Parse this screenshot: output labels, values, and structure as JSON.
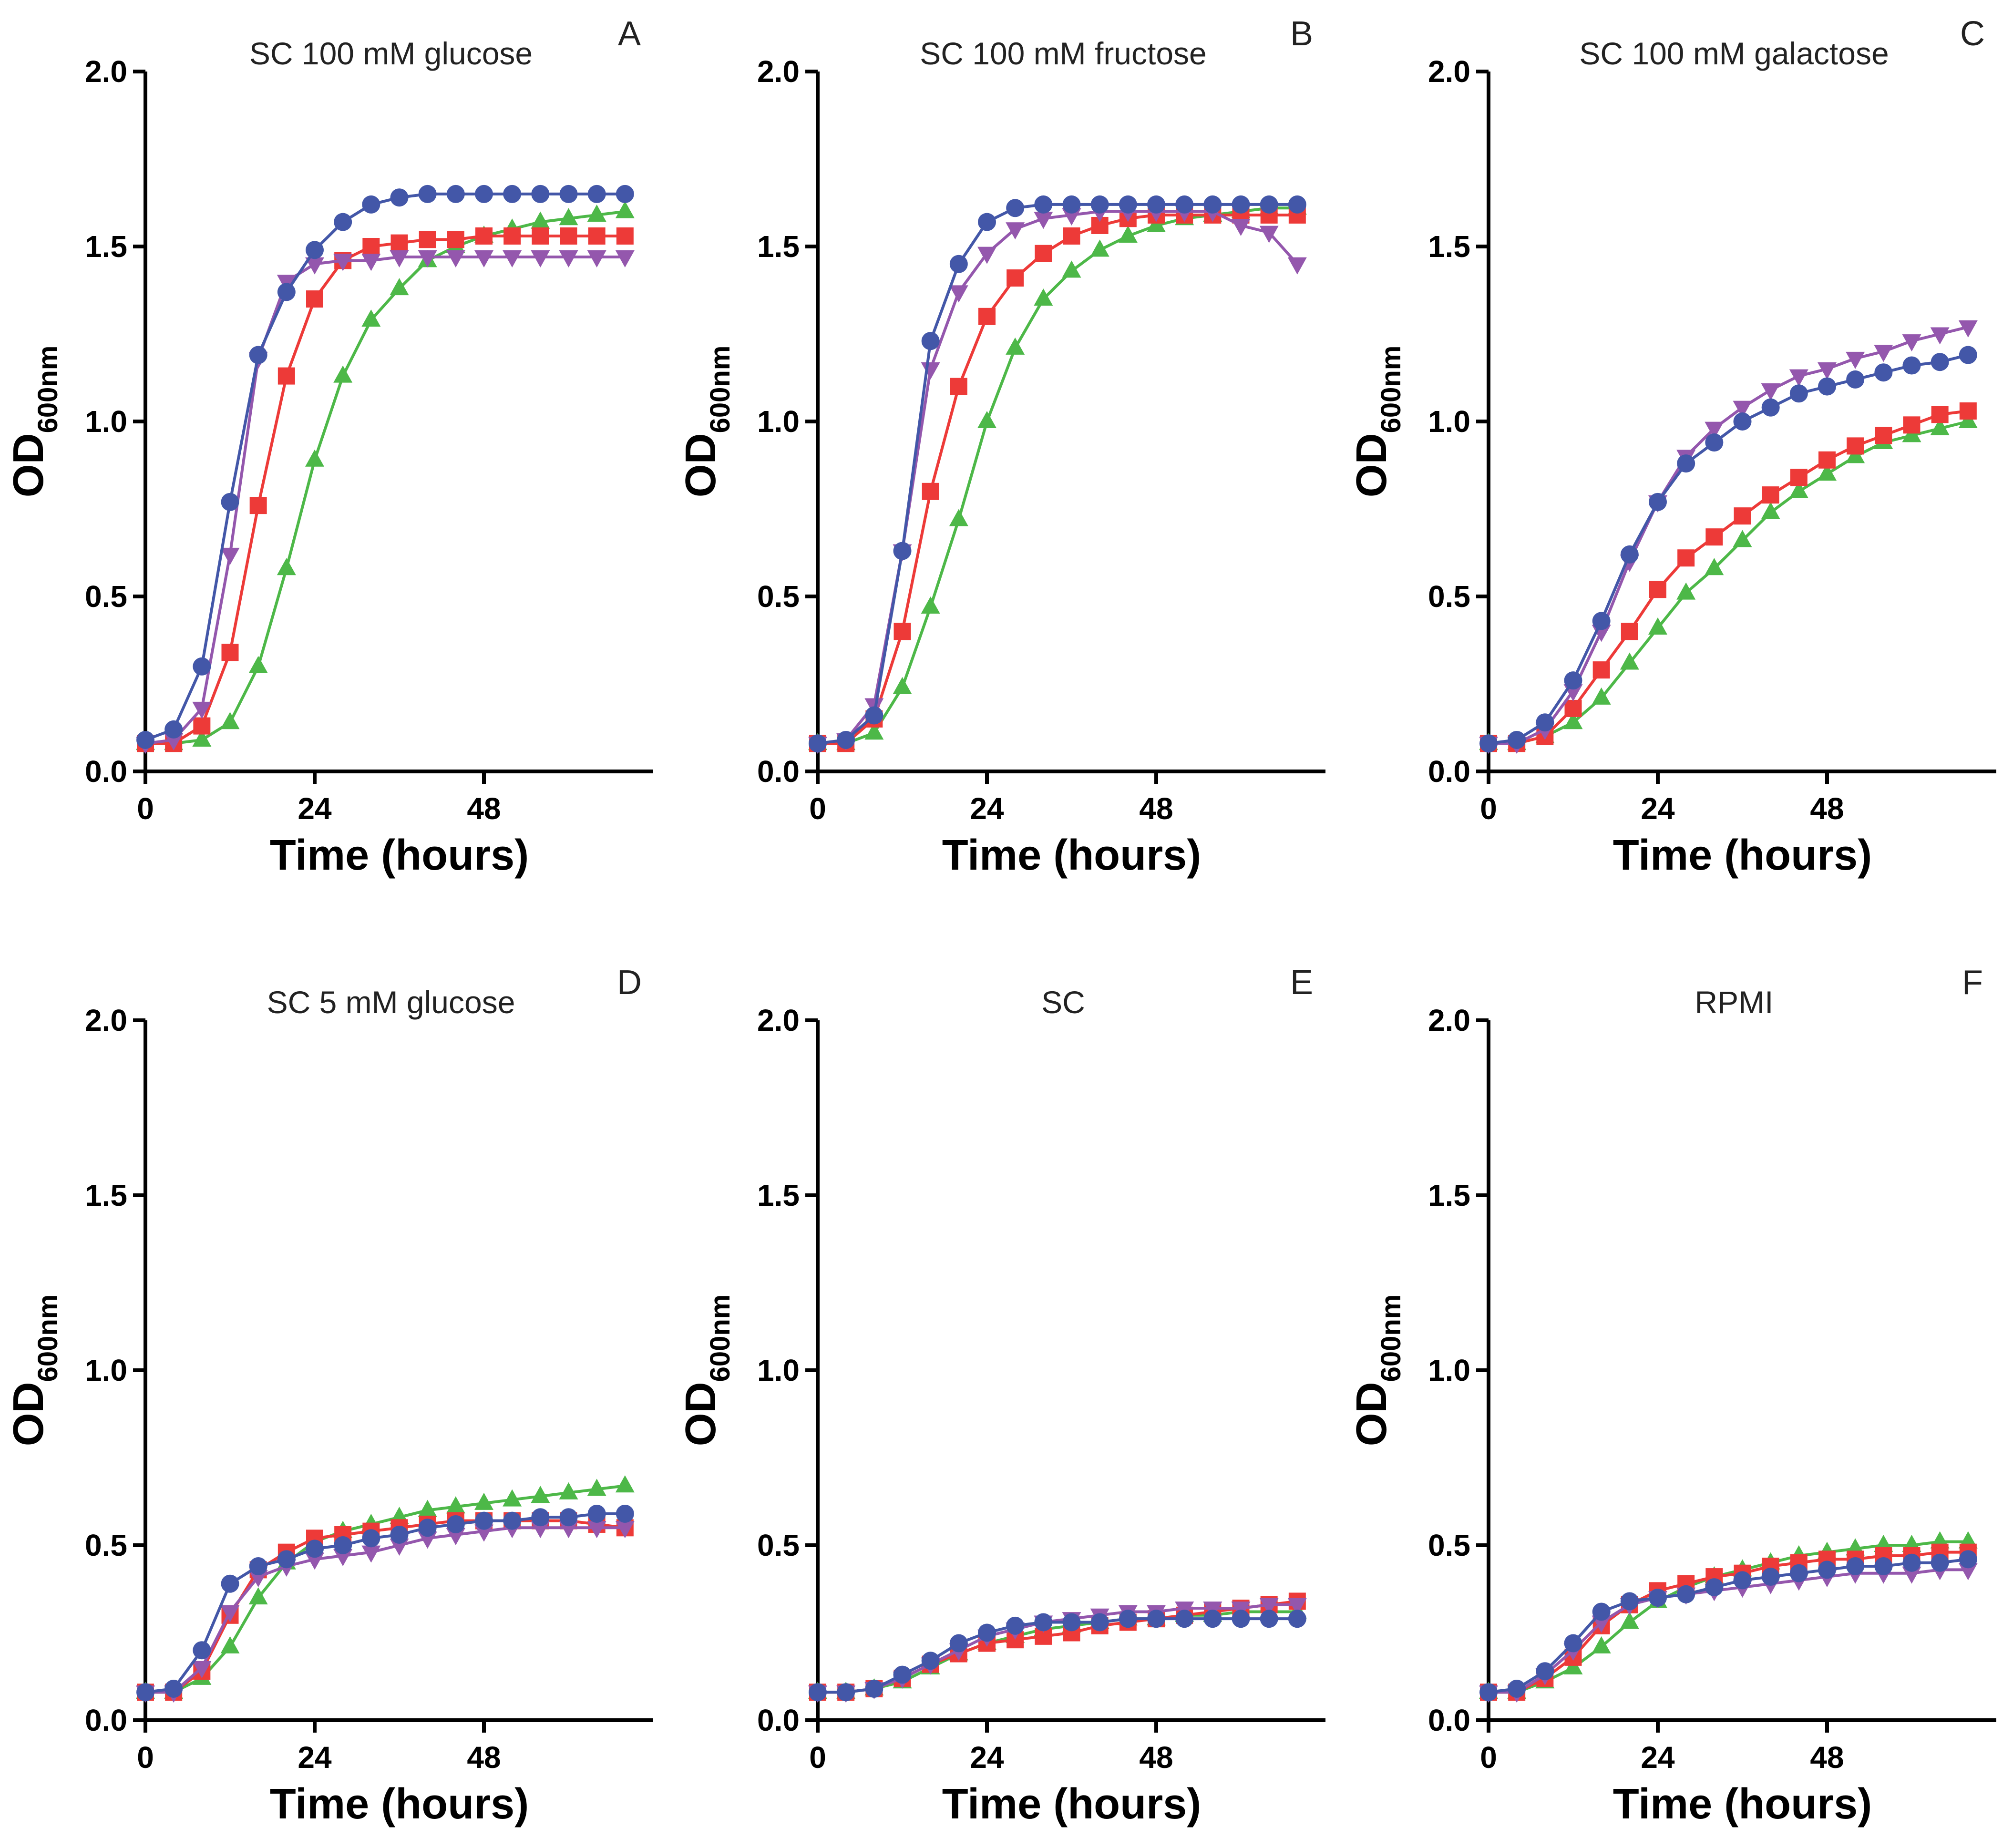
{
  "chart_data": [
    {
      "type": "line",
      "letter": "A",
      "title": "SC 100 mM glucose",
      "ylabel": "OD",
      "ylabel_sub": "600nm",
      "xlabel": "Time (hours)",
      "xlim": [
        0,
        72
      ],
      "ylim": [
        0,
        2.0
      ],
      "xticks": [
        "0",
        "24",
        "48"
      ],
      "yticks": [
        "0.0",
        "0.5",
        "1.0",
        "1.5",
        "2.0"
      ],
      "x": [
        0,
        4,
        8,
        12,
        16,
        20,
        24,
        28,
        32,
        36,
        40,
        44,
        48,
        52,
        56,
        60,
        64,
        68
      ],
      "series": [
        {
          "name": "blue-circle",
          "values": [
            0.09,
            0.12,
            0.3,
            0.77,
            1.19,
            1.37,
            1.49,
            1.57,
            1.62,
            1.64,
            1.65,
            1.65,
            1.65,
            1.65,
            1.65,
            1.65,
            1.65,
            1.65
          ]
        },
        {
          "name": "purple-triangle-down",
          "values": [
            0.08,
            0.09,
            0.18,
            0.62,
            1.18,
            1.4,
            1.45,
            1.46,
            1.46,
            1.47,
            1.47,
            1.47,
            1.47,
            1.47,
            1.47,
            1.47,
            1.47,
            1.47
          ]
        },
        {
          "name": "red-square",
          "values": [
            0.08,
            0.08,
            0.13,
            0.34,
            0.76,
            1.13,
            1.35,
            1.46,
            1.5,
            1.51,
            1.52,
            1.52,
            1.53,
            1.53,
            1.53,
            1.53,
            1.53,
            1.53
          ]
        },
        {
          "name": "green-triangle-up",
          "values": [
            0.08,
            0.08,
            0.09,
            0.14,
            0.3,
            0.58,
            0.89,
            1.13,
            1.29,
            1.38,
            1.46,
            1.5,
            1.53,
            1.55,
            1.57,
            1.58,
            1.59,
            1.6
          ]
        }
      ]
    },
    {
      "type": "line",
      "letter": "B",
      "title": "SC 100 mM fructose",
      "ylabel": "OD",
      "ylabel_sub": "600nm",
      "xlabel": "Time (hours)",
      "xlim": [
        0,
        72
      ],
      "ylim": [
        0,
        2.0
      ],
      "xticks": [
        "0",
        "24",
        "48"
      ],
      "yticks": [
        "0.0",
        "0.5",
        "1.0",
        "1.5",
        "2.0"
      ],
      "x": [
        0,
        4,
        8,
        12,
        16,
        20,
        24,
        28,
        32,
        36,
        40,
        44,
        48,
        52,
        56,
        60,
        64,
        68
      ],
      "series": [
        {
          "name": "blue-circle",
          "values": [
            0.08,
            0.09,
            0.16,
            0.63,
            1.23,
            1.45,
            1.57,
            1.61,
            1.62,
            1.62,
            1.62,
            1.62,
            1.62,
            1.62,
            1.62,
            1.62,
            1.62,
            1.62
          ]
        },
        {
          "name": "purple-triangle-down",
          "values": [
            0.08,
            0.09,
            0.19,
            0.63,
            1.15,
            1.37,
            1.48,
            1.55,
            1.58,
            1.59,
            1.6,
            1.6,
            1.6,
            1.6,
            1.6,
            1.56,
            1.54,
            1.45
          ]
        },
        {
          "name": "red-square",
          "values": [
            0.08,
            0.08,
            0.15,
            0.4,
            0.8,
            1.1,
            1.3,
            1.41,
            1.48,
            1.53,
            1.56,
            1.58,
            1.59,
            1.59,
            1.59,
            1.59,
            1.59,
            1.59
          ]
        },
        {
          "name": "green-triangle-up",
          "values": [
            0.08,
            0.08,
            0.11,
            0.24,
            0.47,
            0.72,
            1.0,
            1.21,
            1.35,
            1.43,
            1.49,
            1.53,
            1.56,
            1.58,
            1.59,
            1.6,
            1.61,
            1.61
          ]
        }
      ]
    },
    {
      "type": "line",
      "letter": "C",
      "title": "SC 100 mM galactose",
      "ylabel": "OD",
      "ylabel_sub": "600nm",
      "xlabel": "Time (hours)",
      "xlim": [
        0,
        72
      ],
      "ylim": [
        0,
        2.0
      ],
      "xticks": [
        "0",
        "24",
        "48"
      ],
      "yticks": [
        "0.0",
        "0.5",
        "1.0",
        "1.5",
        "2.0"
      ],
      "x": [
        0,
        4,
        8,
        12,
        16,
        20,
        24,
        28,
        32,
        36,
        40,
        44,
        48,
        52,
        56,
        60,
        64,
        68
      ],
      "series": [
        {
          "name": "blue-circle",
          "values": [
            0.08,
            0.09,
            0.14,
            0.26,
            0.43,
            0.62,
            0.77,
            0.88,
            0.94,
            1.0,
            1.04,
            1.08,
            1.1,
            1.12,
            1.14,
            1.16,
            1.17,
            1.19
          ]
        },
        {
          "name": "purple-triangle-down",
          "values": [
            0.08,
            0.08,
            0.12,
            0.23,
            0.4,
            0.6,
            0.77,
            0.9,
            0.98,
            1.04,
            1.09,
            1.13,
            1.15,
            1.18,
            1.2,
            1.23,
            1.25,
            1.27
          ]
        },
        {
          "name": "red-square",
          "values": [
            0.08,
            0.08,
            0.1,
            0.18,
            0.29,
            0.4,
            0.52,
            0.61,
            0.67,
            0.73,
            0.79,
            0.84,
            0.89,
            0.93,
            0.96,
            0.99,
            1.02,
            1.03
          ]
        },
        {
          "name": "green-triangle-up",
          "values": [
            0.08,
            0.08,
            0.1,
            0.14,
            0.21,
            0.31,
            0.41,
            0.51,
            0.58,
            0.66,
            0.74,
            0.8,
            0.85,
            0.9,
            0.94,
            0.96,
            0.98,
            1.0
          ]
        }
      ]
    },
    {
      "type": "line",
      "letter": "D",
      "title": "SC 5 mM glucose",
      "ylabel": "OD",
      "ylabel_sub": "600nm",
      "xlabel": "Time (hours)",
      "xlim": [
        0,
        72
      ],
      "ylim": [
        0,
        2.0
      ],
      "xticks": [
        "0",
        "24",
        "48"
      ],
      "yticks": [
        "0.0",
        "0.5",
        "1.0",
        "1.5",
        "2.0"
      ],
      "x": [
        0,
        4,
        8,
        12,
        16,
        20,
        24,
        28,
        32,
        36,
        40,
        44,
        48,
        52,
        56,
        60,
        64,
        68
      ],
      "series": [
        {
          "name": "blue-circle",
          "values": [
            0.08,
            0.09,
            0.2,
            0.39,
            0.44,
            0.46,
            0.49,
            0.5,
            0.52,
            0.53,
            0.55,
            0.56,
            0.57,
            0.57,
            0.58,
            0.58,
            0.59,
            0.59
          ]
        },
        {
          "name": "purple-triangle-down",
          "values": [
            0.08,
            0.08,
            0.15,
            0.31,
            0.41,
            0.44,
            0.46,
            0.47,
            0.48,
            0.5,
            0.52,
            0.53,
            0.54,
            0.55,
            0.55,
            0.55,
            0.55,
            0.55
          ]
        },
        {
          "name": "red-square",
          "values": [
            0.08,
            0.08,
            0.14,
            0.3,
            0.43,
            0.48,
            0.52,
            0.53,
            0.54,
            0.55,
            0.56,
            0.57,
            0.57,
            0.57,
            0.57,
            0.57,
            0.56,
            0.55
          ]
        },
        {
          "name": "green-triangle-up",
          "values": [
            0.08,
            0.08,
            0.12,
            0.21,
            0.35,
            0.45,
            0.51,
            0.54,
            0.56,
            0.58,
            0.6,
            0.61,
            0.62,
            0.63,
            0.64,
            0.65,
            0.66,
            0.67
          ]
        }
      ]
    },
    {
      "type": "line",
      "letter": "E",
      "title": "SC",
      "ylabel": "OD",
      "ylabel_sub": "600nm",
      "xlabel": "Time (hours)",
      "xlim": [
        0,
        72
      ],
      "ylim": [
        0,
        2.0
      ],
      "xticks": [
        "0",
        "24",
        "48"
      ],
      "yticks": [
        "0.0",
        "0.5",
        "1.0",
        "1.5",
        "2.0"
      ],
      "x": [
        0,
        4,
        8,
        12,
        16,
        20,
        24,
        28,
        32,
        36,
        40,
        44,
        48,
        52,
        56,
        60,
        64,
        68
      ],
      "series": [
        {
          "name": "blue-circle",
          "values": [
            0.08,
            0.08,
            0.09,
            0.13,
            0.17,
            0.22,
            0.25,
            0.27,
            0.28,
            0.28,
            0.28,
            0.29,
            0.29,
            0.29,
            0.29,
            0.29,
            0.29,
            0.29
          ]
        },
        {
          "name": "purple-triangle-down",
          "values": [
            0.08,
            0.08,
            0.09,
            0.12,
            0.16,
            0.2,
            0.24,
            0.26,
            0.28,
            0.29,
            0.3,
            0.31,
            0.31,
            0.32,
            0.32,
            0.32,
            0.33,
            0.33
          ]
        },
        {
          "name": "red-square",
          "values": [
            0.08,
            0.08,
            0.09,
            0.12,
            0.16,
            0.19,
            0.22,
            0.23,
            0.24,
            0.25,
            0.27,
            0.28,
            0.29,
            0.3,
            0.31,
            0.32,
            0.33,
            0.34
          ]
        },
        {
          "name": "green-triangle-up",
          "values": [
            0.08,
            0.08,
            0.09,
            0.11,
            0.15,
            0.19,
            0.22,
            0.24,
            0.26,
            0.27,
            0.28,
            0.29,
            0.29,
            0.3,
            0.3,
            0.31,
            0.31,
            0.31
          ]
        }
      ]
    },
    {
      "type": "line",
      "letter": "F",
      "title": "RPMI",
      "ylabel": "OD",
      "ylabel_sub": "600nm",
      "xlabel": "Time (hours)",
      "xlim": [
        0,
        72
      ],
      "ylim": [
        0,
        2.0
      ],
      "xticks": [
        "0",
        "24",
        "48"
      ],
      "yticks": [
        "0.0",
        "0.5",
        "1.0",
        "1.5",
        "2.0"
      ],
      "x": [
        0,
        4,
        8,
        12,
        16,
        20,
        24,
        28,
        32,
        36,
        40,
        44,
        48,
        52,
        56,
        60,
        64,
        68
      ],
      "series": [
        {
          "name": "blue-circle",
          "values": [
            0.08,
            0.09,
            0.14,
            0.22,
            0.31,
            0.34,
            0.35,
            0.36,
            0.38,
            0.4,
            0.41,
            0.42,
            0.43,
            0.44,
            0.44,
            0.45,
            0.45,
            0.46
          ]
        },
        {
          "name": "purple-triangle-down",
          "values": [
            0.08,
            0.08,
            0.13,
            0.2,
            0.28,
            0.33,
            0.35,
            0.36,
            0.37,
            0.38,
            0.39,
            0.4,
            0.41,
            0.42,
            0.42,
            0.42,
            0.43,
            0.43
          ]
        },
        {
          "name": "red-square",
          "values": [
            0.08,
            0.08,
            0.12,
            0.18,
            0.27,
            0.33,
            0.37,
            0.39,
            0.41,
            0.42,
            0.44,
            0.45,
            0.46,
            0.46,
            0.47,
            0.47,
            0.48,
            0.48
          ]
        },
        {
          "name": "green-triangle-up",
          "values": [
            0.08,
            0.08,
            0.11,
            0.15,
            0.21,
            0.28,
            0.34,
            0.38,
            0.41,
            0.43,
            0.45,
            0.47,
            0.48,
            0.49,
            0.5,
            0.5,
            0.51,
            0.51
          ]
        }
      ]
    }
  ],
  "series_styles": {
    "blue-circle": {
      "color": "#4357a8",
      "marker": "circle"
    },
    "purple-triangle-down": {
      "color": "#9457ad",
      "marker": "triangle-down"
    },
    "red-square": {
      "color": "#ed3a38",
      "marker": "square"
    },
    "green-triangle-up": {
      "color": "#4db848",
      "marker": "triangle-up"
    }
  },
  "draw_order": [
    "green-triangle-up",
    "red-square",
    "purple-triangle-down",
    "blue-circle"
  ]
}
